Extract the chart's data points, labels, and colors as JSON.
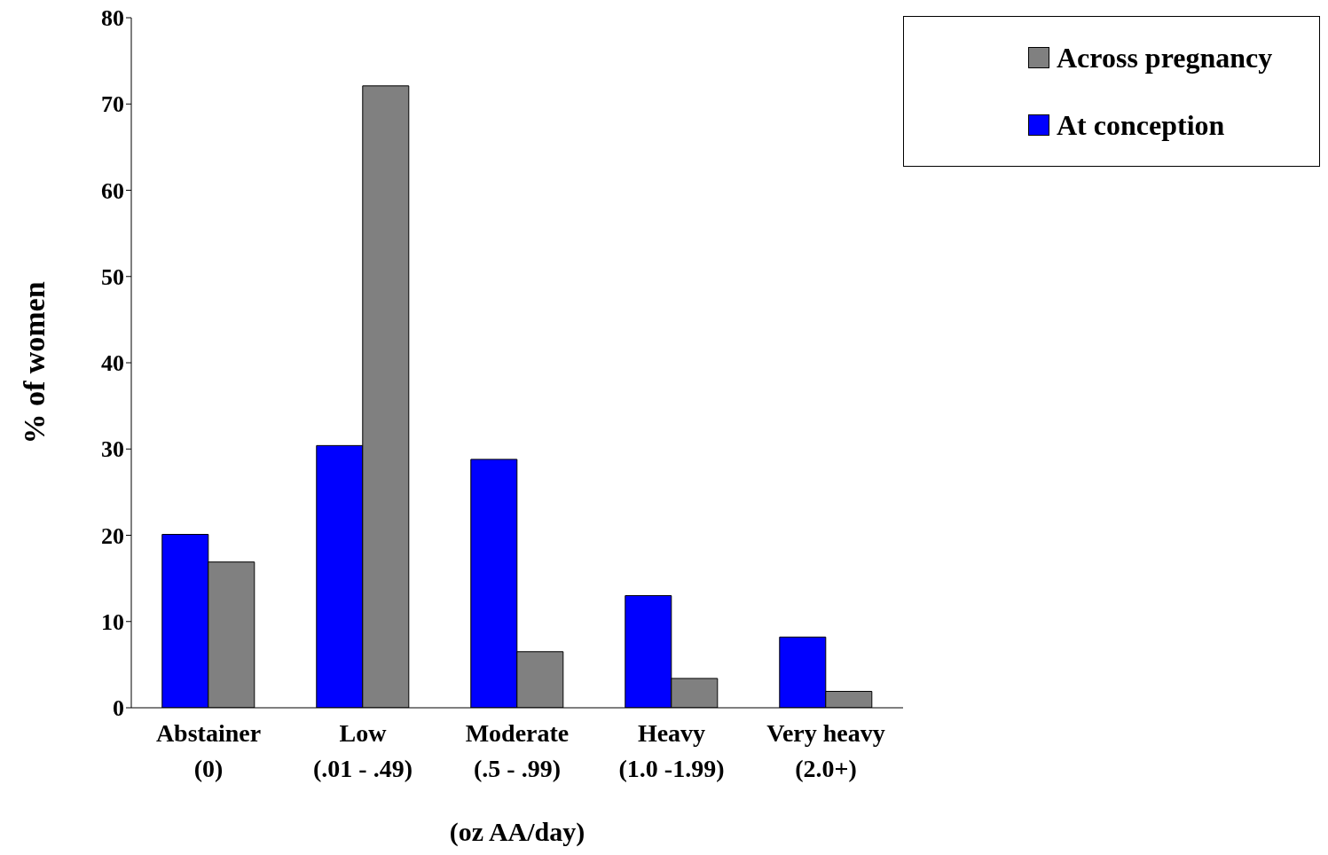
{
  "chart_data": {
    "type": "bar",
    "xlabel": "(oz AA/day)",
    "ylabel": "% of women",
    "categories": [
      "Abstainer\n(0)",
      "Low\n(.01 - .49)",
      "Moderate\n(.5 - .99)",
      "Heavy\n(1.0 -1.99)",
      "Very heavy\n(2.0+)"
    ],
    "series": [
      {
        "name": "At conception",
        "color": "#0000ff",
        "values": [
          20.1,
          30.4,
          28.8,
          13.0,
          8.2
        ]
      },
      {
        "name": "Across pregnancy",
        "color": "#808080",
        "values": [
          16.9,
          72.1,
          6.5,
          3.4,
          1.9
        ]
      }
    ],
    "ylim": [
      0,
      80
    ],
    "yticks": [
      0,
      10,
      20,
      30,
      40,
      50,
      60,
      70,
      80
    ],
    "grid": false,
    "legend": "top right"
  }
}
